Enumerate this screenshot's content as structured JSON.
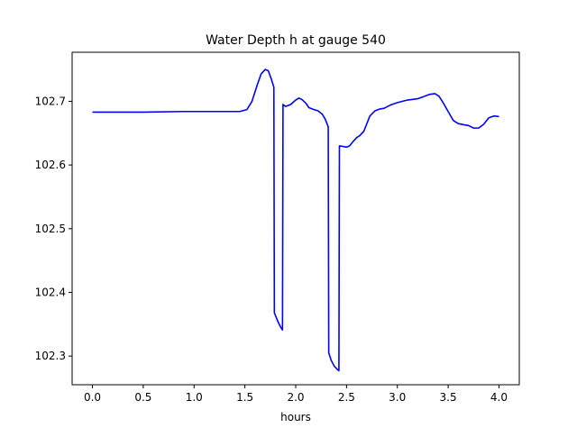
{
  "chart_data": {
    "type": "line",
    "title": "Water Depth h at gauge 540",
    "xlabel": "hours",
    "ylabel": "",
    "xlim": [
      -0.2,
      4.2
    ],
    "ylim": [
      102.255,
      102.777
    ],
    "xticks": [
      0.0,
      0.5,
      1.0,
      1.5,
      2.0,
      2.5,
      3.0,
      3.5,
      4.0
    ],
    "xtick_labels": [
      "0.0",
      "0.5",
      "1.0",
      "1.5",
      "2.0",
      "2.5",
      "3.0",
      "3.5",
      "4.0"
    ],
    "yticks": [
      102.3,
      102.4,
      102.5,
      102.6,
      102.7
    ],
    "ytick_labels": [
      "102.3",
      "102.4",
      "102.5",
      "102.6",
      "102.7"
    ],
    "grid": false,
    "legend": "none",
    "series": [
      {
        "color": "#0000ff",
        "points": [
          [
            0.0,
            102.683
          ],
          [
            0.5,
            102.683
          ],
          [
            0.9,
            102.684
          ],
          [
            1.2,
            102.684
          ],
          [
            1.45,
            102.684
          ],
          [
            1.52,
            102.687
          ],
          [
            1.57,
            102.7
          ],
          [
            1.62,
            102.725
          ],
          [
            1.66,
            102.743
          ],
          [
            1.7,
            102.75
          ],
          [
            1.73,
            102.748
          ],
          [
            1.76,
            102.735
          ],
          [
            1.785,
            102.722
          ],
          [
            1.79,
            102.368
          ],
          [
            1.82,
            102.356
          ],
          [
            1.85,
            102.346
          ],
          [
            1.87,
            102.341
          ],
          [
            1.875,
            102.695
          ],
          [
            1.9,
            102.692
          ],
          [
            1.95,
            102.695
          ],
          [
            2.0,
            102.702
          ],
          [
            2.03,
            102.705
          ],
          [
            2.06,
            102.703
          ],
          [
            2.1,
            102.697
          ],
          [
            2.13,
            102.69
          ],
          [
            2.18,
            102.687
          ],
          [
            2.22,
            102.685
          ],
          [
            2.26,
            102.68
          ],
          [
            2.29,
            102.672
          ],
          [
            2.32,
            102.66
          ],
          [
            2.325,
            102.305
          ],
          [
            2.35,
            102.293
          ],
          [
            2.38,
            102.284
          ],
          [
            2.41,
            102.279
          ],
          [
            2.425,
            102.277
          ],
          [
            2.43,
            102.63
          ],
          [
            2.47,
            102.629
          ],
          [
            2.5,
            102.628
          ],
          [
            2.53,
            102.63
          ],
          [
            2.56,
            102.636
          ],
          [
            2.6,
            102.643
          ],
          [
            2.63,
            102.646
          ],
          [
            2.67,
            102.653
          ],
          [
            2.7,
            102.665
          ],
          [
            2.73,
            102.677
          ],
          [
            2.78,
            102.685
          ],
          [
            2.83,
            102.688
          ],
          [
            2.87,
            102.689
          ],
          [
            2.93,
            102.694
          ],
          [
            3.0,
            102.698
          ],
          [
            3.1,
            102.702
          ],
          [
            3.2,
            102.704
          ],
          [
            3.27,
            102.708
          ],
          [
            3.32,
            102.711
          ],
          [
            3.37,
            102.712
          ],
          [
            3.41,
            102.708
          ],
          [
            3.45,
            102.698
          ],
          [
            3.5,
            102.684
          ],
          [
            3.55,
            102.67
          ],
          [
            3.6,
            102.665
          ],
          [
            3.66,
            102.663
          ],
          [
            3.7,
            102.662
          ],
          [
            3.75,
            102.658
          ],
          [
            3.8,
            102.658
          ],
          [
            3.85,
            102.664
          ],
          [
            3.9,
            102.674
          ],
          [
            3.95,
            102.677
          ],
          [
            4.0,
            102.676
          ]
        ]
      }
    ]
  }
}
